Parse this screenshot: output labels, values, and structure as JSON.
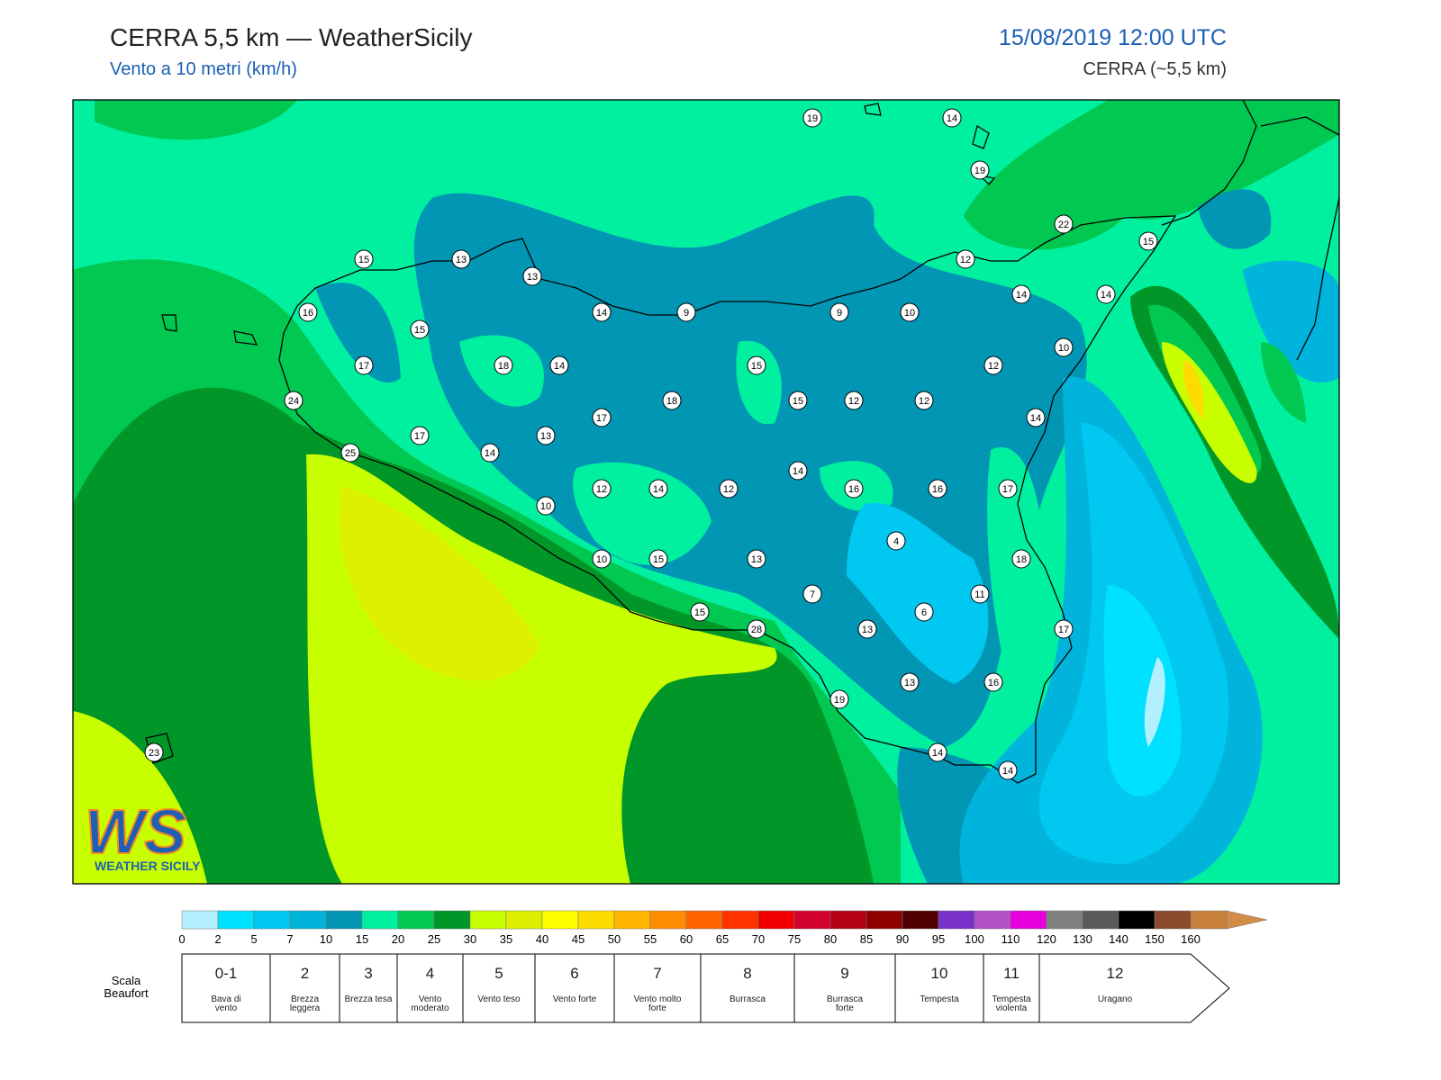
{
  "header": {
    "title": "CERRA 5,5 km — WeatherSicily",
    "subtitle": "Vento a 10 metri (km/h)",
    "datetime": "15/08/2019 12:00 UTC",
    "model": "CERRA (~5,5 km)"
  },
  "map": {
    "stations": [
      19,
      14,
      19,
      22,
      15,
      15,
      13,
      13,
      12,
      16,
      14,
      9,
      9,
      10,
      14,
      14,
      15,
      10,
      17,
      18,
      14,
      15,
      12,
      24,
      18,
      15,
      12,
      12,
      17,
      14,
      17,
      13,
      14,
      25,
      14,
      12,
      14,
      12,
      16,
      16,
      17,
      10,
      4,
      10,
      15,
      13,
      18,
      7,
      11,
      6,
      15,
      28,
      13,
      17,
      13,
      16,
      19,
      23,
      14,
      14
    ]
  },
  "logo": {
    "mark": "WS",
    "text": "WEATHER SICILY"
  },
  "colorbar": {
    "ticks": [
      0,
      2,
      5,
      7,
      10,
      15,
      20,
      25,
      30,
      35,
      40,
      45,
      50,
      55,
      60,
      65,
      70,
      75,
      80,
      85,
      90,
      95,
      100,
      110,
      120,
      130,
      140,
      150,
      160
    ],
    "colors": [
      "#b3f0ff",
      "#00e0ff",
      "#00c8f0",
      "#00b4dc",
      "#0096b4",
      "#00f0a0",
      "#00c850",
      "#009628",
      "#c8ff00",
      "#dcf000",
      "#ffff00",
      "#ffdc00",
      "#ffb400",
      "#ff8c00",
      "#ff6400",
      "#ff3200",
      "#f00000",
      "#d2002d",
      "#b40014",
      "#8c0000",
      "#500000",
      "#7832c8",
      "#b450c8",
      "#e600dc",
      "#808080",
      "#5a5a5a",
      "#000000",
      "#8b4a2b",
      "#c8823c"
    ],
    "over_color": "#d28c46"
  },
  "beaufort": {
    "title": "Scala Beaufort",
    "levels": [
      {
        "force": "0-1",
        "name": "Bava di vento"
      },
      {
        "force": 2,
        "name": "Brezza leggera"
      },
      {
        "force": 3,
        "name": "Brezza tesa"
      },
      {
        "force": 4,
        "name": "Vento moderato"
      },
      {
        "force": 5,
        "name": "Vento teso"
      },
      {
        "force": 6,
        "name": "Vento forte"
      },
      {
        "force": 7,
        "name": "Vento molto forte"
      },
      {
        "force": 8,
        "name": "Burrasca"
      },
      {
        "force": 9,
        "name": "Burrasca forte"
      },
      {
        "force": 10,
        "name": "Tempesta"
      },
      {
        "force": 11,
        "name": "Tempesta violenta"
      },
      {
        "force": 12,
        "name": "Uragano"
      }
    ]
  }
}
